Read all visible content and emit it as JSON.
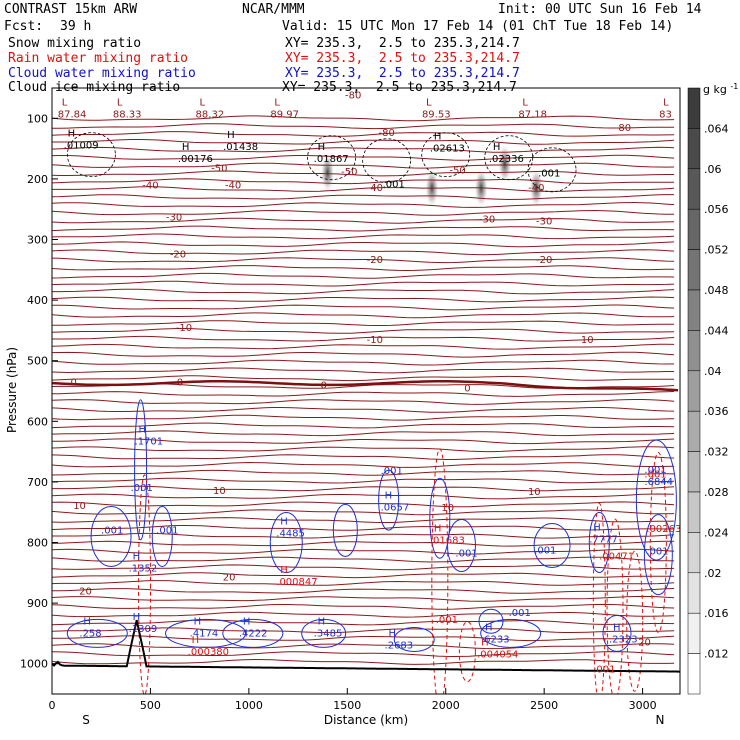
{
  "header": {
    "model": "CONTRAST 15km ARW",
    "org": "NCAR/MMM",
    "init": "Init: 00 UTC Sun 16 Feb 14",
    "fcst_label": "Fcst:",
    "fcst_value": "39 h",
    "valid": "Valid: 15 UTC Mon 17 Feb 14 (01 ChT Tue 18 Feb 14)",
    "snow_label": "Snow mixing ratio",
    "snow_xy": "XY= 235.3,  2.5 to 235.3,214.7",
    "rain_label": "Rain water mixing ratio",
    "rain_xy": "XY= 235.3,  2.5 to 235.3,214.7",
    "cloud_label": "Cloud water mixing ratio",
    "cloud_xy": "XY= 235.3,  2.5 to 235.3,214.7",
    "ice_label": "Cloud ice mixing ratio",
    "ice_xy": "XY= 235.3,  2.5 to 235.3,214.7"
  },
  "colors": {
    "temp": "#8b1a1a",
    "zero_line": "#7a1010",
    "cloud": "#1f2fd6",
    "rain": "#dd1111",
    "ice": "#000000",
    "terrain": "#000000"
  },
  "chart_data": {
    "type": "heatmap",
    "xlabel": "Distance (km)",
    "ylabel": "Pressure (hPa)",
    "xlim": [
      0,
      3190
    ],
    "ylim": [
      1050,
      50
    ],
    "yscale": "linear, reversed",
    "x_ticks": [
      "0",
      "500",
      "1000",
      "1500",
      "2000",
      "2500",
      "3000"
    ],
    "y_ticks": [
      "100",
      "200",
      "300",
      "400",
      "500",
      "600",
      "700",
      "800",
      "900",
      "1000"
    ],
    "x_end_labels": {
      "left": "S",
      "right": "N"
    },
    "colorbar": {
      "unit": "g kg",
      "unit_exp": "-1",
      "ticks": [
        ".064",
        ".06",
        ".056",
        ".052",
        ".048",
        ".044",
        ".04",
        ".036",
        ".032",
        ".028",
        ".024",
        ".02",
        ".016",
        ".012"
      ]
    },
    "isotherm_labels": [
      {
        "value": "-80",
        "x": 1530,
        "p": 62
      },
      {
        "value": "-80",
        "x": 1700,
        "p": 124
      },
      {
        "value": "-80",
        "x": 2900,
        "p": 116
      },
      {
        "value": "-50",
        "x": 850,
        "p": 183
      },
      {
        "value": "-50",
        "x": 1510,
        "p": 189
      },
      {
        "value": "-50",
        "x": 2060,
        "p": 186
      },
      {
        "value": "-40",
        "x": 500,
        "p": 211
      },
      {
        "value": "-40",
        "x": 920,
        "p": 211
      },
      {
        "value": "-40",
        "x": 1640,
        "p": 215
      },
      {
        "value": "-40",
        "x": 2460,
        "p": 215
      },
      {
        "value": "-30",
        "x": 620,
        "p": 264
      },
      {
        "value": "-30",
        "x": 2210,
        "p": 267
      },
      {
        "value": "-30",
        "x": 2500,
        "p": 270
      },
      {
        "value": "-20",
        "x": 640,
        "p": 325
      },
      {
        "value": "-20",
        "x": 1640,
        "p": 334
      },
      {
        "value": "-20",
        "x": 2500,
        "p": 334
      },
      {
        "value": "-10",
        "x": 670,
        "p": 446
      },
      {
        "value": "-10",
        "x": 1640,
        "p": 466
      },
      {
        "value": "-10",
        "x": 2710,
        "p": 466
      },
      {
        "value": "0",
        "x": 110,
        "p": 536
      },
      {
        "value": "0",
        "x": 650,
        "p": 536
      },
      {
        "value": "0",
        "x": 1380,
        "p": 541
      },
      {
        "value": "0",
        "x": 2110,
        "p": 546
      },
      {
        "value": "10",
        "x": 140,
        "p": 740
      },
      {
        "value": "10",
        "x": 850,
        "p": 715
      },
      {
        "value": "10",
        "x": 2450,
        "p": 717
      },
      {
        "value": "10",
        "x": 2010,
        "p": 743
      },
      {
        "value": "20",
        "x": 170,
        "p": 881
      },
      {
        "value": "20",
        "x": 900,
        "p": 858
      },
      {
        "value": "20",
        "x": 3010,
        "p": 965
      }
    ],
    "extrema_labels": [
      {
        "kind": "L",
        "value": "87.84",
        "x": 80,
        "p": 89,
        "series": "temperature"
      },
      {
        "kind": "L",
        "value": "88.33",
        "x": 360,
        "p": 89,
        "series": "temperature"
      },
      {
        "kind": "L",
        "value": "88.32",
        "x": 780,
        "p": 89,
        "series": "temperature"
      },
      {
        "kind": "L",
        "value": "89.97",
        "x": 1160,
        "p": 89,
        "series": "temperature"
      },
      {
        "kind": "L",
        "value": "89.53",
        "x": 1930,
        "p": 89,
        "series": "temperature"
      },
      {
        "kind": "L",
        "value": "87.18",
        "x": 2420,
        "p": 89,
        "series": "temperature"
      },
      {
        "kind": "L",
        "value": "83",
        "x": 3135,
        "p": 89,
        "series": "temperature"
      },
      {
        "kind": "H",
        "value": ".01009",
        "x": 110,
        "p": 140,
        "series": "ice"
      },
      {
        "kind": "H",
        "value": ".00176",
        "x": 690,
        "p": 162,
        "series": "ice"
      },
      {
        "kind": "H",
        "value": ".01438",
        "x": 920,
        "p": 142,
        "series": "ice"
      },
      {
        "kind": "H",
        "value": ".01867",
        "x": 1380,
        "p": 162,
        "series": "ice"
      },
      {
        "kind": "H",
        "value": ".02613",
        "x": 1970,
        "p": 145,
        "series": "ice"
      },
      {
        "kind": "H",
        "value": ".02336",
        "x": 2270,
        "p": 162,
        "series": "ice"
      },
      {
        "kind": "",
        "value": ".001",
        "x": 1730,
        "p": 204,
        "series": "ice"
      },
      {
        "kind": "",
        "value": ".001",
        "x": 2520,
        "p": 186,
        "series": "ice"
      },
      {
        "kind": "H",
        "value": ".1701",
        "x": 470,
        "p": 628,
        "series": "cloud"
      },
      {
        "kind": "",
        "value": ".001",
        "x": 450,
        "p": 705,
        "series": "cloud"
      },
      {
        "kind": "",
        "value": ".001",
        "x": 300,
        "p": 775,
        "series": "cloud"
      },
      {
        "kind": "",
        "value": ".001",
        "x": 580,
        "p": 775,
        "series": "cloud"
      },
      {
        "kind": "H",
        "value": ".1352",
        "x": 440,
        "p": 838,
        "series": "cloud"
      },
      {
        "kind": "H",
        "value": ".1309",
        "x": 440,
        "p": 938,
        "series": "cloud"
      },
      {
        "kind": "H",
        "value": ".258",
        "x": 190,
        "p": 945,
        "series": "cloud"
      },
      {
        "kind": "H",
        "value": ".4174",
        "x": 750,
        "p": 945,
        "series": "cloud"
      },
      {
        "kind": "H",
        "value": ".4222",
        "x": 1000,
        "p": 945,
        "series": "cloud"
      },
      {
        "kind": "H",
        "value": ".3485",
        "x": 1380,
        "p": 945,
        "series": "cloud"
      },
      {
        "kind": "H",
        "value": ".4485",
        "x": 1190,
        "p": 780,
        "series": "cloud"
      },
      {
        "kind": "",
        "value": ".001",
        "x": 1720,
        "p": 677,
        "series": "cloud"
      },
      {
        "kind": "H",
        "value": ".0657",
        "x": 1720,
        "p": 737,
        "series": "cloud"
      },
      {
        "kind": "",
        "value": ".001",
        "x": 2100,
        "p": 813,
        "series": "cloud"
      },
      {
        "kind": "H",
        "value": ".2683",
        "x": 1740,
        "p": 965,
        "series": "cloud"
      },
      {
        "kind": "H",
        "value": ".6233",
        "x": 2230,
        "p": 955,
        "series": "cloud"
      },
      {
        "kind": "",
        "value": ".001",
        "x": 2370,
        "p": 911,
        "series": "cloud"
      },
      {
        "kind": "",
        "value": ".001",
        "x": 2500,
        "p": 808,
        "series": "cloud"
      },
      {
        "kind": "H",
        "value": ".7777",
        "x": 2780,
        "p": 790,
        "series": "cloud"
      },
      {
        "kind": "H",
        "value": ".2323",
        "x": 2880,
        "p": 955,
        "series": "cloud"
      },
      {
        "kind": "",
        "value": ".001",
        "x": 3060,
        "p": 675,
        "series": "cloud"
      },
      {
        "kind": "",
        "value": ".6844",
        "x": 3060,
        "p": 695,
        "series": "cloud"
      },
      {
        "kind": "",
        "value": ".001",
        "x": 3070,
        "p": 810,
        "series": "cloud"
      },
      {
        "kind": "H",
        "value": ".000847",
        "x": 1190,
        "p": 860,
        "series": "rain"
      },
      {
        "kind": "H",
        "value": ".000380",
        "x": 740,
        "p": 976,
        "series": "rain"
      },
      {
        "kind": "H",
        "value": ".01683",
        "x": 1970,
        "p": 792,
        "series": "rain"
      },
      {
        "kind": "",
        "value": ".001",
        "x": 2000,
        "p": 923,
        "series": "rain"
      },
      {
        "kind": "H",
        "value": ".004054",
        "x": 2210,
        "p": 980,
        "series": "rain"
      },
      {
        "kind": "",
        "value": ".001",
        "x": 3060,
        "p": 683,
        "series": "rain"
      },
      {
        "kind": "",
        "value": ".00263",
        "x": 3070,
        "p": 773,
        "series": "rain"
      },
      {
        "kind": "",
        "value": ".00471",
        "x": 2830,
        "p": 818,
        "series": "rain"
      },
      {
        "kind": "",
        "value": ".001",
        "x": 2800,
        "p": 1005,
        "series": "rain"
      }
    ],
    "snow_maxima": [
      {
        "x": 1400,
        "p": 190
      },
      {
        "x": 1930,
        "p": 215
      },
      {
        "x": 2180,
        "p": 215
      },
      {
        "x": 2300,
        "p": 175
      },
      {
        "x": 2460,
        "p": 215
      }
    ]
  }
}
